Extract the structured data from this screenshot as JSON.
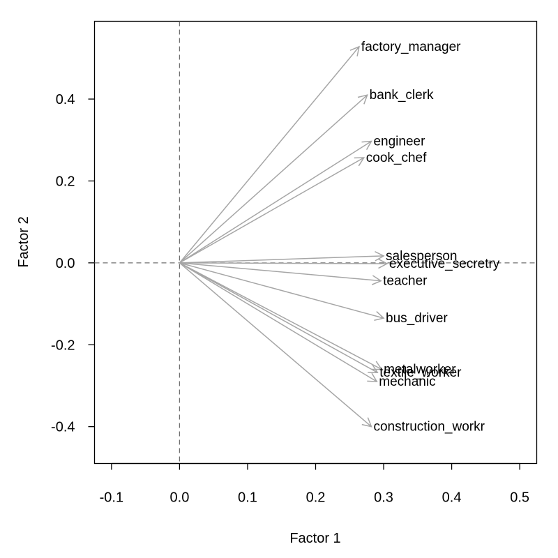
{
  "chart_data": {
    "type": "scatter",
    "subtype": "factor-loadings-biplot",
    "title": "",
    "xlabel": "Factor 1",
    "ylabel": "Factor 2",
    "xlim": [
      -0.125,
      0.525
    ],
    "ylim": [
      -0.49,
      0.59
    ],
    "xticks": [
      "-0.1",
      "0.0",
      "0.1",
      "0.2",
      "0.3",
      "0.4",
      "0.5"
    ],
    "yticks": [
      "-0.4",
      "-0.2",
      "0.0",
      "0.2",
      "0.4"
    ],
    "reference_lines": {
      "x0": true,
      "y0": true,
      "style": "dashed"
    },
    "grid": false,
    "vector_color": "#a6a6a6",
    "points": [
      {
        "label": "factory_manager",
        "x": 0.264,
        "y": 0.528
      },
      {
        "label": "bank_clerk",
        "x": 0.276,
        "y": 0.41
      },
      {
        "label": "engineer",
        "x": 0.282,
        "y": 0.297
      },
      {
        "label": "cook_chef",
        "x": 0.271,
        "y": 0.257
      },
      {
        "label": "salesperson",
        "x": 0.3,
        "y": 0.017
      },
      {
        "label": "executive_secretry",
        "x": 0.305,
        "y": -0.002
      },
      {
        "label": "teacher",
        "x": 0.296,
        "y": -0.044
      },
      {
        "label": "bus_driver",
        "x": 0.3,
        "y": -0.135
      },
      {
        "label": "metalworker",
        "x": 0.297,
        "y": -0.26
      },
      {
        "label": "textile_worker",
        "x": 0.291,
        "y": -0.268
      },
      {
        "label": "mechanic",
        "x": 0.29,
        "y": -0.29
      },
      {
        "label": "construction_workr",
        "x": 0.282,
        "y": -0.4
      }
    ]
  }
}
